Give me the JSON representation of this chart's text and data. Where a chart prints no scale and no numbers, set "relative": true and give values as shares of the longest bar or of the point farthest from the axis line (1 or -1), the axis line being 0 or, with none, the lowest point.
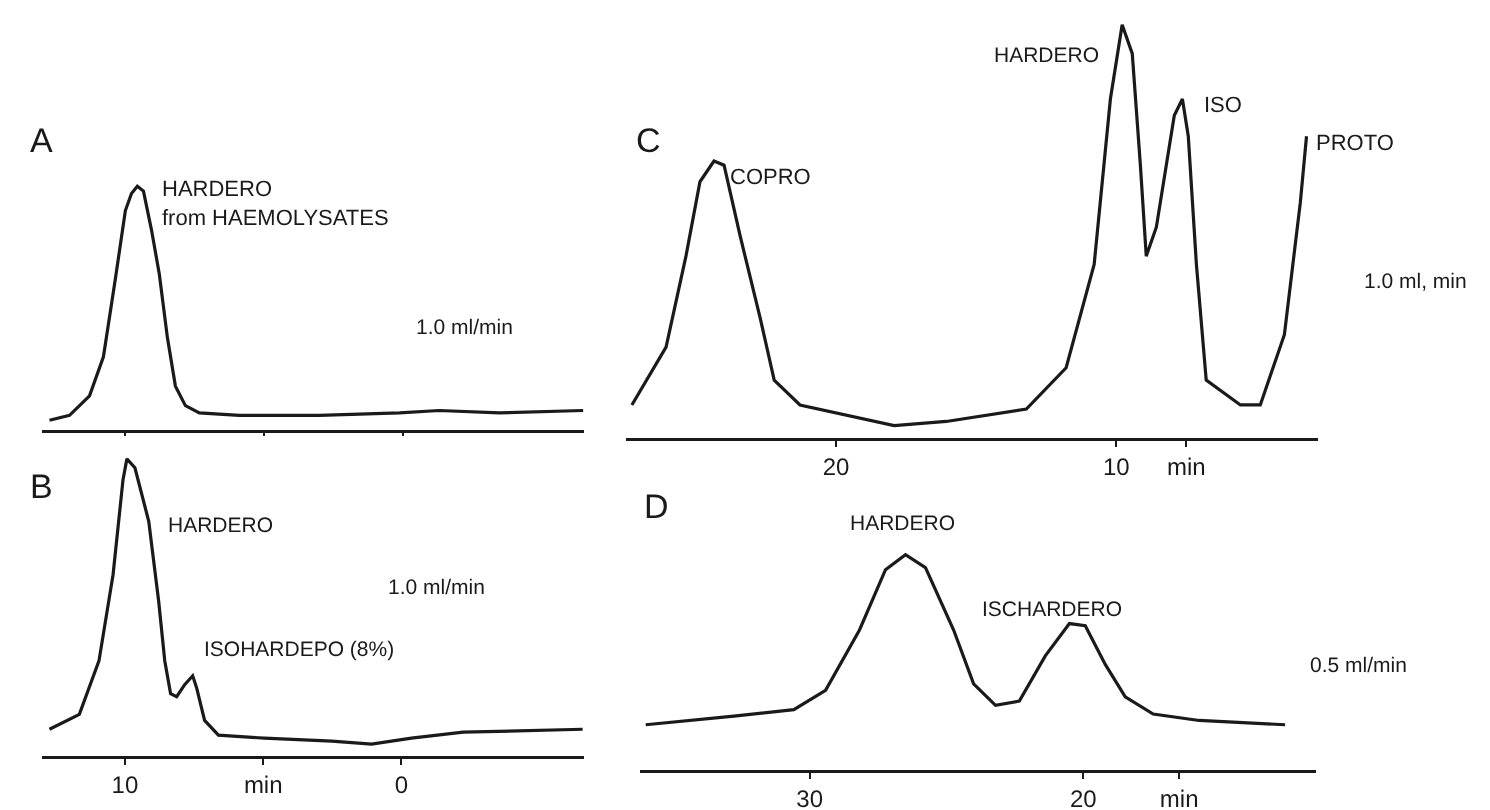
{
  "chart_data": [
    {
      "type": "line",
      "title": "A",
      "relative": true,
      "x": [
        12.73,
        12.01,
        11.29,
        10.79,
        10.36,
        10.0,
        9.78,
        9.57,
        9.35,
        9.06,
        8.78,
        8.49,
        8.2,
        7.84,
        7.34,
        5.9,
        3.02,
        0.14,
        -1.29,
        -3.45,
        -6.47
      ],
      "series": [
        {
          "color": "#1a1a1a",
          "values": [
            0.04,
            0.06,
            0.14,
            0.3,
            0.62,
            0.9,
            0.97,
            1,
            0.98,
            0.82,
            0.64,
            0.38,
            0.18,
            0.1,
            0.07,
            0.06,
            0.06,
            0.07,
            0.08,
            0.07,
            0.08
          ]
        }
      ],
      "xlim": [
        13,
        -6.5
      ],
      "xticks": [
        10,
        {
          "value": 5,
          "label": null
        },
        0
      ],
      "tick_labels": false,
      "annotations": [
        {
          "text": "HARDERO\nfrom HAEMOLYSATES",
          "x": 9.57,
          "y": 1
        },
        "1.0 ml/min"
      ]
    },
    {
      "type": "line",
      "title": "B",
      "relative": true,
      "x": [
        12.73,
        11.65,
        10.94,
        10.43,
        10.07,
        9.93,
        9.64,
        9.14,
        8.78,
        8.56,
        8.35,
        8.13,
        7.84,
        7.55,
        7.41,
        7.12,
        6.62,
        4.96,
        2.52,
        1.08,
        -0.36,
        -2.23,
        -6.55
      ],
      "series": [
        {
          "color": "#1a1a1a",
          "values": [
            0.09,
            0.14,
            0.32,
            0.61,
            0.93,
            1,
            0.97,
            0.79,
            0.52,
            0.32,
            0.21,
            0.2,
            0.24,
            0.27,
            0.23,
            0.12,
            0.07,
            0.06,
            0.05,
            0.04,
            0.06,
            0.08,
            0.09
          ]
        }
      ],
      "xlim": [
        13,
        -6.6
      ],
      "xticks": [
        10,
        {
          "value": 5,
          "label": "min"
        },
        0
      ],
      "annotations": [
        "HARDERO",
        "ISOHARDEPO (8%)",
        "1.0 ml/min"
      ]
    },
    {
      "type": "line",
      "title": "C",
      "relative": true,
      "x": [
        27.29,
        26.07,
        25.36,
        24.86,
        24.36,
        24.0,
        23.43,
        22.71,
        22.21,
        21.29,
        17.93,
        16.07,
        13.21,
        11.79,
        10.79,
        10.21,
        9.79,
        9.43,
        9.14,
        8.93,
        8.57,
        7.93,
        7.64,
        7.43,
        7.14,
        6.79,
        5.57,
        4.86,
        4.0,
        3.43,
        3.21
      ],
      "series": [
        {
          "color": "#1a1a1a",
          "values": [
            0.08,
            0.22,
            0.44,
            0.62,
            0.67,
            0.66,
            0.49,
            0.29,
            0.14,
            0.08,
            0.03,
            0.04,
            0.07,
            0.17,
            0.42,
            0.82,
            1,
            0.93,
            0.66,
            0.44,
            0.51,
            0.78,
            0.82,
            0.73,
            0.42,
            0.14,
            0.08,
            0.08,
            0.25,
            0.57,
            0.73
          ]
        }
      ],
      "xlim": [
        27.5,
        2.8
      ],
      "xticks": [
        20,
        10,
        {
          "value": 7.5,
          "label": "min"
        }
      ],
      "annotations": [
        {
          "text": "COPRO",
          "x": 23.9,
          "y": 0.63
        },
        "HARDERO",
        {
          "text": "ISO",
          "x": 7.64,
          "y": 0.82
        },
        {
          "text": "PROTO",
          "x": 3.0,
          "y": 0.71
        },
        "1.0 ml, min"
      ]
    },
    {
      "type": "line",
      "title": "D",
      "relative": true,
      "x": [
        35.99,
        32.77,
        30.58,
        29.42,
        28.18,
        27.23,
        26.5,
        25.77,
        24.74,
        24.01,
        23.21,
        22.34,
        21.39,
        20.51,
        19.93,
        19.2,
        18.47,
        17.45,
        15.77,
        12.63
      ],
      "series": [
        {
          "color": "#1a1a1a",
          "values": [
            0.21,
            0.25,
            0.28,
            0.37,
            0.65,
            0.93,
            1,
            0.94,
            0.65,
            0.4,
            0.3,
            0.32,
            0.53,
            0.68,
            0.67,
            0.49,
            0.34,
            0.26,
            0.23,
            0.21
          ]
        }
      ],
      "xlim": [
        36.2,
        11.5
      ],
      "xticks": [
        30,
        20,
        {
          "value": 16.5,
          "label": "min"
        }
      ],
      "annotations": [
        "HARDERO",
        "ISCHARDERO",
        "0.5 ml/min"
      ]
    }
  ]
}
